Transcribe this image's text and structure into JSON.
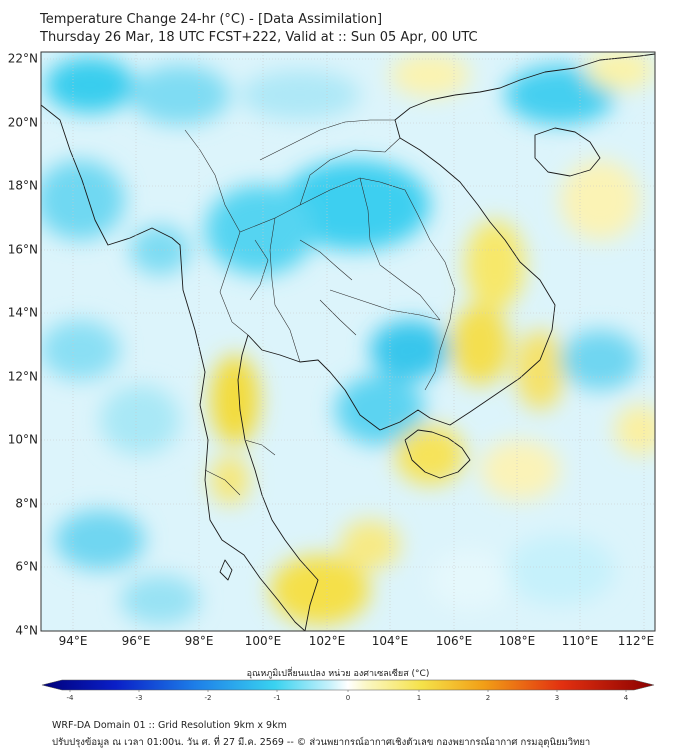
{
  "header": {
    "title": "Temperature Change 24-hr (°C) - [Data Assimilation]",
    "subtitle": "Thursday 26 Mar, 18 UTC FCST+222, Valid at :: Sun 05 Apr, 00 UTC"
  },
  "map": {
    "lat_range": [
      4,
      22.3
    ],
    "lon_range": [
      93,
      112.3
    ],
    "lat_ticks": [
      "4°N",
      "6°N",
      "8°N",
      "10°N",
      "12°N",
      "14°N",
      "16°N",
      "18°N",
      "20°N",
      "22°N"
    ],
    "lon_ticks": [
      "94°E",
      "96°E",
      "98°E",
      "100°E",
      "102°E",
      "104°E",
      "106°E",
      "108°E",
      "110°E",
      "112°E"
    ],
    "grid": true
  },
  "colorbar": {
    "title": "อุณหภูมิเปลี่ยนแปลง หน่วย องศาเซลเซียส (°C)",
    "ticks": [
      "-4",
      "-3",
      "-2",
      "-1",
      "0",
      "1",
      "2",
      "3",
      "4"
    ],
    "range": [
      -4,
      4
    ],
    "colors": {
      "cold_end": "#00007a",
      "cyan": "#39d2f0",
      "zero": "#ffffff",
      "yellow": "#f5e24a",
      "hot_end": "#8a0000"
    }
  },
  "footer": {
    "line1": "WRF-DA Domain 01 :: Grid Resolution 9km x 9km",
    "line2": "ปรับปรุงข้อมูล ณ เวลา 01:00น. วัน ศ. ที่ 27 มี.ค. 2569 -- © ส่วนพยากรณ์อากาศเชิงตัวเลข กองพยากรณ์อากาศ กรมอุตุนิยมวิทยา"
  }
}
